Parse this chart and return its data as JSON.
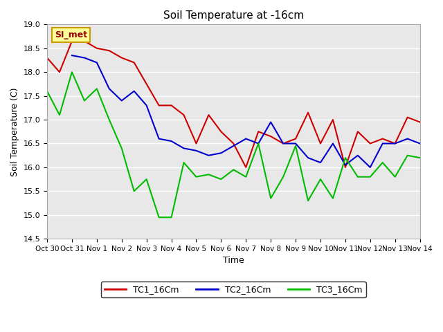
{
  "title": "Soil Temperature at -16cm",
  "xlabel": "Time",
  "ylabel": "Soil Temperature (C)",
  "ylim": [
    14.5,
    19.0
  ],
  "background_color": "#ffffff",
  "plot_bg_color": "#e8e8e8",
  "grid_color": "#ffffff",
  "annotation_text": "SI_met",
  "annotation_bg": "#ffff99",
  "annotation_border": "#cc9900",
  "annotation_text_color": "#990000",
  "x_ticks": [
    "Oct 30",
    "Oct 31",
    "Nov 1",
    "Nov 2",
    "Nov 3",
    "Nov 4",
    "Nov 5",
    "Nov 6",
    "Nov 7",
    "Nov 8",
    "Nov 9",
    "Nov 10",
    "Nov 11",
    "Nov 12",
    "Nov 13",
    "Nov 14"
  ],
  "TC1_color": "#cc0000",
  "TC2_color": "#0000cc",
  "TC3_color": "#00bb00",
  "TC1_label": "TC1_16Cm",
  "TC2_label": "TC2_16Cm",
  "TC3_label": "TC3_16Cm",
  "TC1_x": [
    0,
    0.5,
    1,
    1.5,
    2,
    2.5,
    3,
    3.5,
    4,
    4.5,
    5,
    5.5,
    6,
    6.5,
    7,
    7.5,
    8,
    8.5,
    9,
    9.5,
    10,
    10.5,
    11,
    11.5,
    12,
    12.5,
    13,
    13.5,
    14,
    14.5,
    15
  ],
  "TC1_y": [
    18.3,
    18.0,
    18.65,
    18.65,
    18.5,
    18.45,
    18.3,
    18.2,
    17.75,
    17.3,
    17.3,
    17.1,
    16.5,
    17.1,
    16.75,
    16.5,
    16.0,
    16.75,
    16.65,
    16.5,
    16.6,
    17.15,
    16.5,
    17.0,
    16.0,
    16.75,
    16.5,
    16.6,
    16.5,
    17.05,
    16.95
  ],
  "TC2_x": [
    1,
    1.5,
    2,
    2.5,
    3,
    3.5,
    4,
    4.5,
    5,
    5.5,
    6,
    6.5,
    7,
    7.5,
    8,
    8.5,
    9,
    9.5,
    10,
    10.5,
    11,
    11.5,
    12,
    12.5,
    13,
    13.5,
    14,
    14.5,
    15
  ],
  "TC2_y": [
    18.35,
    18.3,
    18.2,
    17.65,
    17.4,
    17.6,
    17.3,
    16.6,
    16.55,
    16.4,
    16.35,
    16.25,
    16.3,
    16.45,
    16.6,
    16.5,
    16.95,
    16.5,
    16.5,
    16.2,
    16.1,
    16.5,
    16.05,
    16.25,
    16.0,
    16.5,
    16.5,
    16.6,
    16.5
  ],
  "TC3_x": [
    0,
    0.5,
    1,
    1.5,
    2,
    2.5,
    3,
    3.5,
    4,
    4.5,
    5,
    5.5,
    6,
    6.5,
    7,
    7.5,
    8,
    8.5,
    9,
    9.5,
    10,
    10.5,
    11,
    11.5,
    12,
    12.5,
    13,
    13.5,
    14,
    14.5,
    15
  ],
  "TC3_y": [
    17.6,
    17.1,
    18.0,
    17.4,
    17.65,
    17.0,
    16.4,
    15.5,
    15.75,
    14.95,
    14.95,
    16.1,
    15.8,
    15.85,
    15.75,
    15.95,
    15.8,
    16.5,
    15.35,
    15.8,
    16.45,
    15.3,
    15.75,
    15.35,
    16.2,
    15.8,
    15.8,
    16.1,
    15.8,
    16.25,
    16.2
  ]
}
